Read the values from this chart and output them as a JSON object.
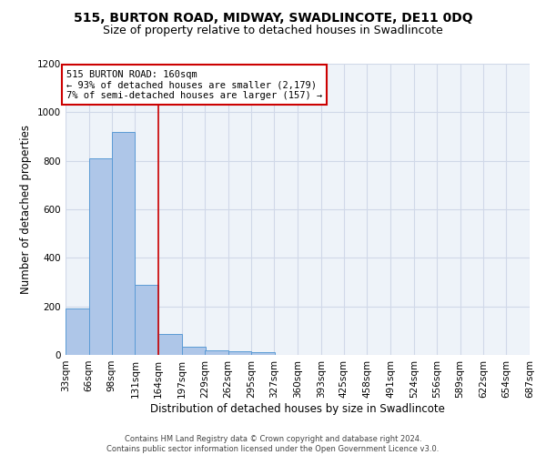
{
  "title1": "515, BURTON ROAD, MIDWAY, SWADLINCOTE, DE11 0DQ",
  "title2": "Size of property relative to detached houses in Swadlincote",
  "xlabel": "Distribution of detached houses by size in Swadlincote",
  "ylabel": "Number of detached properties",
  "footer1": "Contains HM Land Registry data © Crown copyright and database right 2024.",
  "footer2": "Contains public sector information licensed under the Open Government Licence v3.0.",
  "bin_edges": [
    33,
    66,
    98,
    131,
    164,
    197,
    229,
    262,
    295,
    327,
    360,
    393,
    425,
    458,
    491,
    524,
    556,
    589,
    622,
    654,
    687
  ],
  "bar_heights": [
    190,
    810,
    920,
    290,
    85,
    35,
    20,
    15,
    10,
    0,
    0,
    0,
    0,
    0,
    0,
    0,
    0,
    0,
    0,
    0
  ],
  "bar_color": "#aec6e8",
  "bar_edge_color": "#5b9bd5",
  "vline_x": 164,
  "vline_color": "#cc0000",
  "annotation_line1": "515 BURTON ROAD: 160sqm",
  "annotation_line2": "← 93% of detached houses are smaller (2,179)",
  "annotation_line3": "7% of semi-detached houses are larger (157) →",
  "annotation_box_color": "#cc0000",
  "annotation_bg": "#ffffff",
  "ylim": [
    0,
    1200
  ],
  "yticks": [
    0,
    200,
    400,
    600,
    800,
    1000,
    1200
  ],
  "grid_color": "#d0d8e8",
  "bg_color": "#eef3f9",
  "title1_fontsize": 10,
  "title2_fontsize": 9,
  "xlabel_fontsize": 8.5,
  "ylabel_fontsize": 8.5,
  "tick_fontsize": 7.5,
  "annotation_fontsize": 7.5,
  "footer_fontsize": 6
}
